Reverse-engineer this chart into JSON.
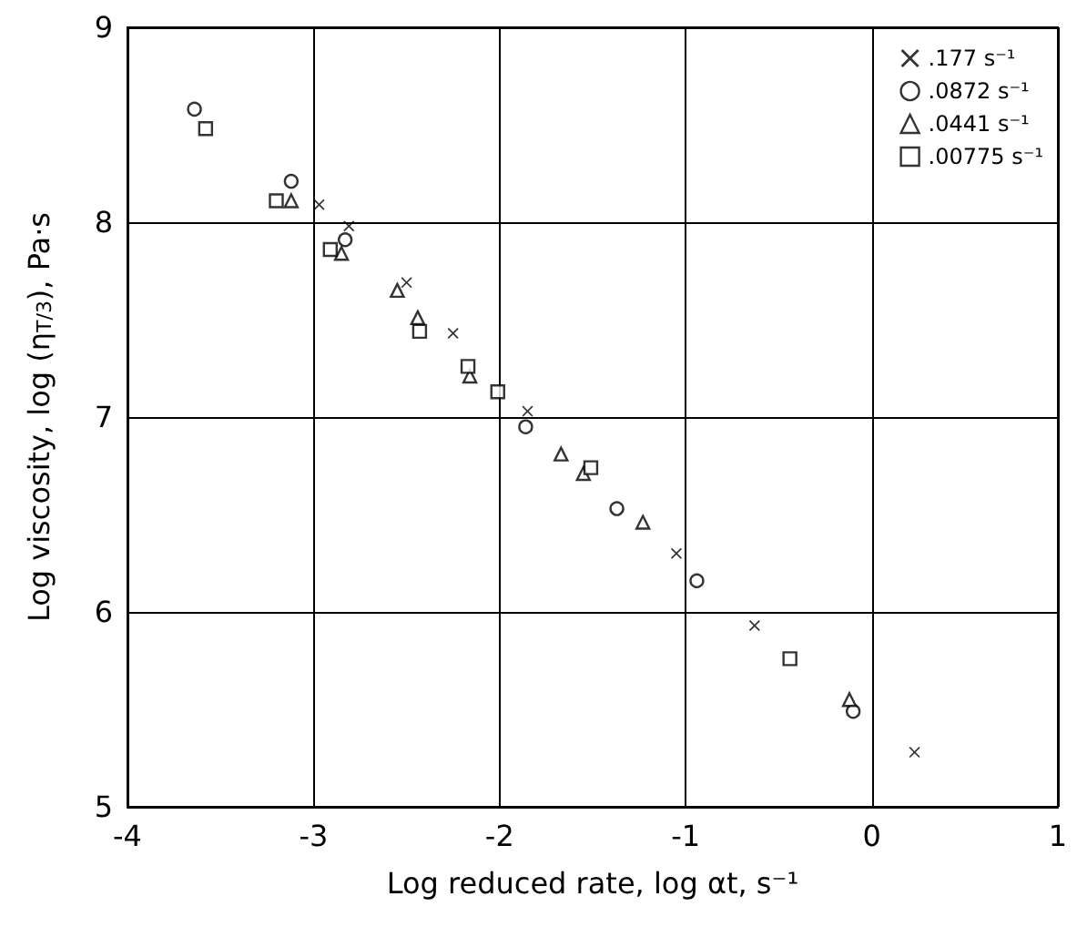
{
  "chart_data": {
    "type": "scatter",
    "xlabel": "Log reduced rate, log αt, s⁻¹",
    "ylabel": "Log viscosity, log (η$_{T/3}$), Pa·s",
    "xlim": [
      -4,
      1
    ],
    "xticks": [
      -4,
      -3,
      -2,
      -1,
      0,
      1
    ],
    "ylim": [
      5,
      9
    ],
    "yticks": [
      5,
      6,
      7,
      8,
      9
    ],
    "grid": true,
    "legend": "top right",
    "series": [
      {
        "name": ".177 s⁻¹",
        "color": "#000000",
        "marker": "cross",
        "x": [
          -2.97,
          -2.81,
          -2.5,
          -2.25,
          -1.85,
          -1.05,
          -0.63,
          0.23
        ],
        "values": [
          8.09,
          7.98,
          7.69,
          7.43,
          7.03,
          6.3,
          5.93,
          5.28
        ]
      },
      {
        "name": ".0872 s⁻¹",
        "color": "#000000",
        "marker": "circle",
        "x": [
          -3.64,
          -3.12,
          -2.83,
          -1.86,
          -1.37,
          -0.94,
          -0.1
        ],
        "values": [
          8.58,
          8.21,
          7.91,
          6.95,
          6.53,
          6.16,
          5.49
        ]
      },
      {
        "name": ".0441 s⁻¹",
        "color": "#000000",
        "marker": "triangle",
        "x": [
          -3.12,
          -2.85,
          -2.55,
          -2.44,
          -2.16,
          -1.67,
          -1.55,
          -1.23,
          -0.12
        ],
        "values": [
          8.11,
          7.84,
          7.65,
          7.51,
          7.21,
          6.81,
          6.71,
          6.46,
          5.55
        ]
      },
      {
        "name": ".00775 s⁻¹",
        "color": "#000000",
        "marker": "square",
        "x": [
          -3.58,
          -3.2,
          -2.91,
          -2.43,
          -2.17,
          -2.01,
          -1.51,
          -0.44
        ],
        "values": [
          8.48,
          8.11,
          7.86,
          7.44,
          7.26,
          7.13,
          6.74,
          5.76
        ]
      }
    ]
  }
}
